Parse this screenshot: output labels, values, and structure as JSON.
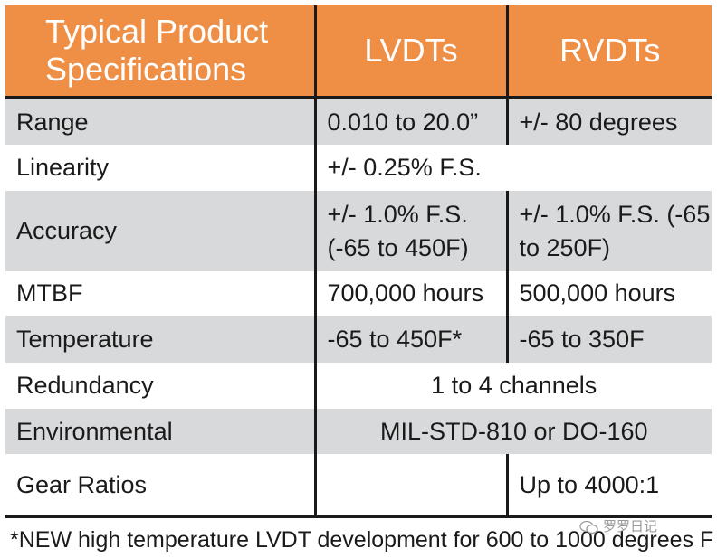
{
  "header": {
    "col1_line1": "Typical Product",
    "col1_line2": "Specifications",
    "col2": "LVDTs",
    "col3": "RVDTs"
  },
  "rows": {
    "range": {
      "label": "Range",
      "lvdt": "0.010 to 20.0”",
      "rvdt": "+/- 80 degrees"
    },
    "linearity": {
      "label": "Linearity",
      "value": "+/- 0.25% F.S."
    },
    "accuracy": {
      "label": "Accuracy",
      "lvdt_line1": "+/- 1.0% F.S.",
      "lvdt_line2": "(-65 to 450F)",
      "rvdt_line1": "+/- 1.0% F.S. (-65",
      "rvdt_line2": "to 250F)"
    },
    "mtbf": {
      "label": "MTBF",
      "lvdt": "700,000 hours",
      "rvdt": "500,000 hours"
    },
    "temperature": {
      "label": "Temperature",
      "lvdt": "-65 to 450F*",
      "rvdt": "-65 to 350F"
    },
    "redundancy": {
      "label": "Redundancy",
      "value": "1 to 4 channels"
    },
    "environmental": {
      "label": "Environmental",
      "value": "MIL-STD-810 or DO-160"
    },
    "gear_ratios": {
      "label": "Gear Ratios",
      "lvdt": "",
      "rvdt": "Up to 4000:1"
    }
  },
  "footnote": "*NEW high temperature LVDT development for 600 to 1000 degrees F",
  "watermark": "罗罗日记",
  "colors": {
    "header_bg": "#ef8f45",
    "stripe": "#d8d9db"
  }
}
